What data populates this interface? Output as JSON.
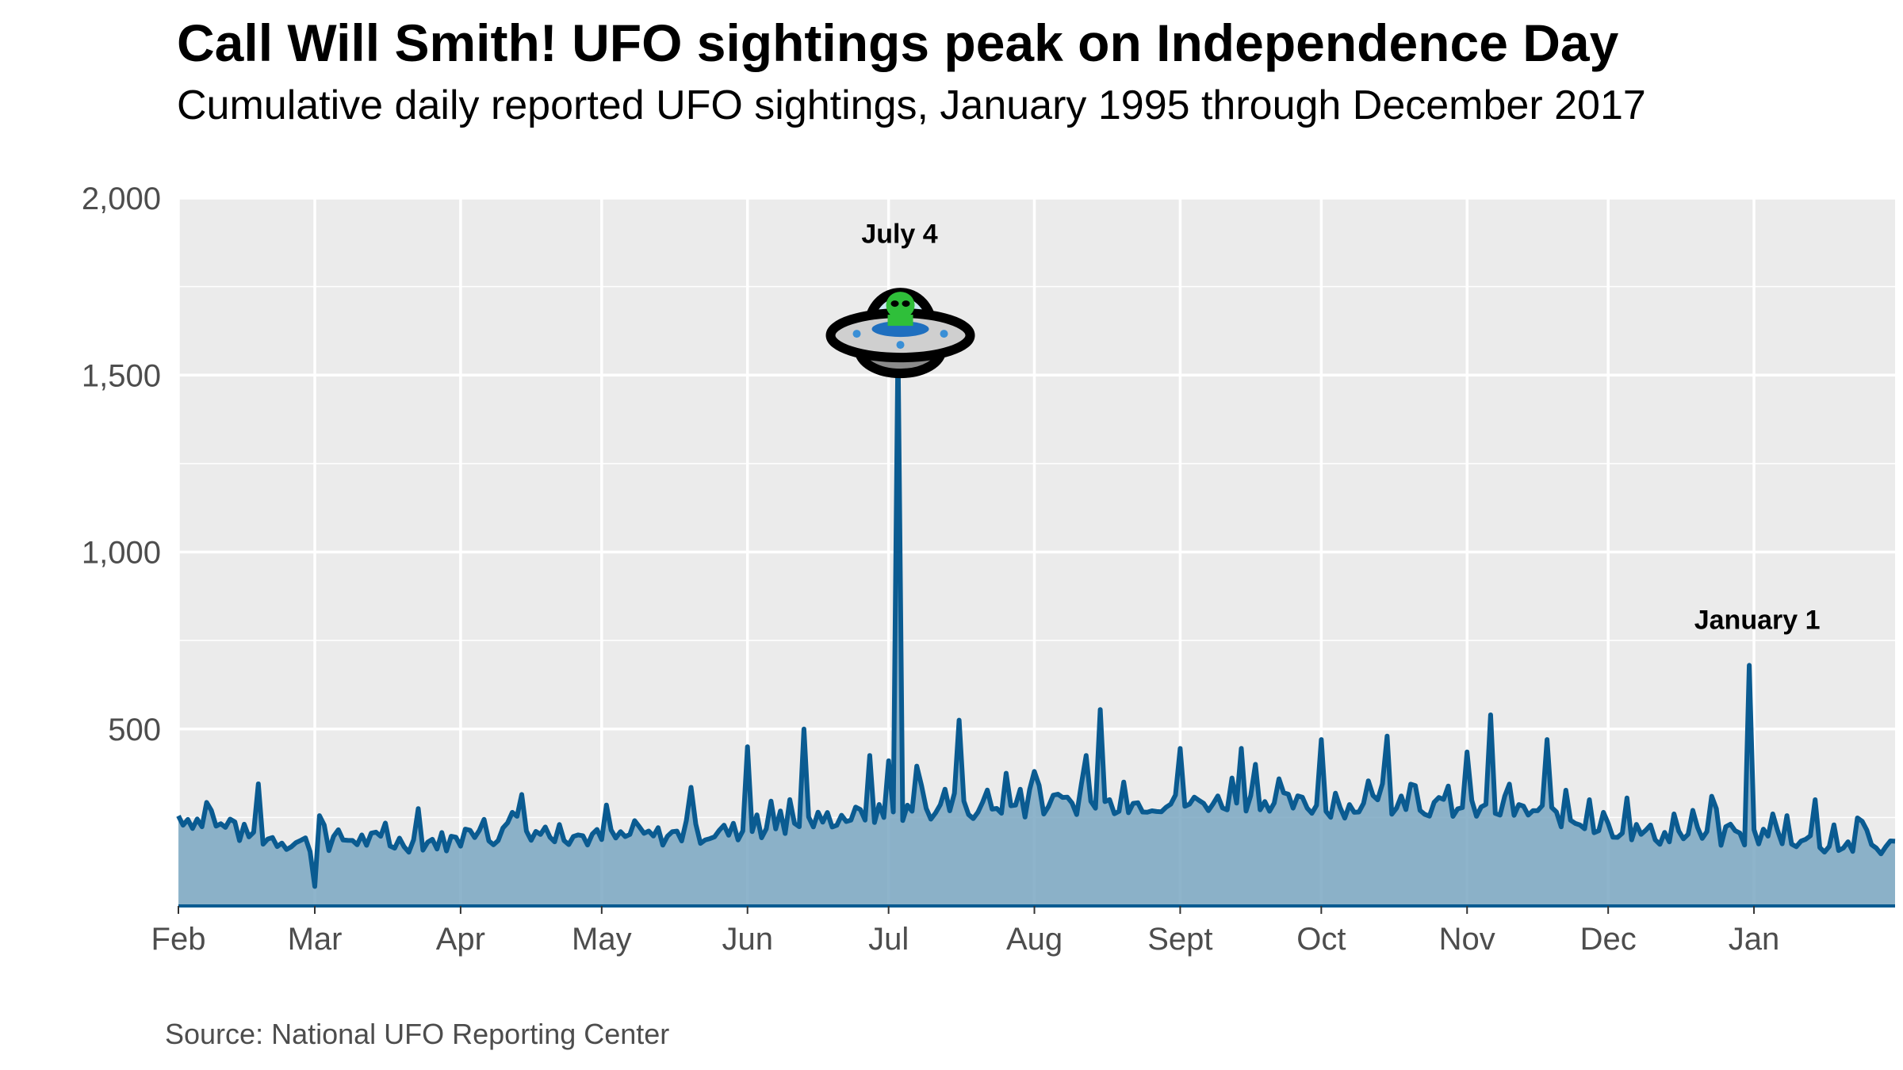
{
  "chart_data": {
    "type": "area",
    "title": "Call Will Smith! UFO sightings peak on Independence Day",
    "subtitle": "Cumulative daily reported UFO sightings, January 1995 through December 2017",
    "caption": "Source: National UFO Reporting Center",
    "xlabel": "",
    "ylabel": "",
    "ylim": [
      0,
      2000
    ],
    "y_ticks": [
      "2,000",
      "1,500",
      "1,000",
      "500"
    ],
    "y_tick_values": [
      2000,
      1500,
      1000,
      500
    ],
    "x_tick_labels": [
      "Feb",
      "Mar",
      "Apr",
      "May",
      "Jun",
      "Jul",
      "Aug",
      "Sept",
      "Oct",
      "Nov",
      "Dec",
      "Jan"
    ],
    "x_tick_days": [
      0,
      29,
      60,
      90,
      121,
      151,
      182,
      213,
      243,
      274,
      304,
      335
    ],
    "x_range_days": [
      0,
      365
    ],
    "grid": true,
    "line_color": "#0a5b91",
    "fill_color": "#7aa7c2",
    "panel_color": "#ebebeb",
    "annotations": [
      {
        "label": "July 4",
        "x_day": 153,
        "y": 1900,
        "icon": "ufo-icon"
      },
      {
        "label": "January 1",
        "x_day": 334,
        "y": 810
      }
    ],
    "series": [
      {
        "x_start": "Feb 1",
        "spikes": [
          [
            7,
            270
          ],
          [
            17,
            345
          ],
          [
            29,
            55
          ],
          [
            30,
            255
          ],
          [
            51,
            275
          ],
          [
            73,
            315
          ],
          [
            91,
            285
          ],
          [
            109,
            335
          ],
          [
            121,
            450
          ],
          [
            133,
            500
          ],
          [
            147,
            425
          ],
          [
            151,
            410
          ],
          [
            153,
            1590
          ],
          [
            157,
            395
          ],
          [
            158,
            340
          ],
          [
            163,
            330
          ],
          [
            166,
            525
          ],
          [
            176,
            375
          ],
          [
            182,
            380
          ],
          [
            193,
            425
          ],
          [
            196,
            555
          ],
          [
            201,
            350
          ],
          [
            213,
            445
          ],
          [
            226,
            445
          ],
          [
            229,
            400
          ],
          [
            243,
            470
          ],
          [
            257,
            480
          ],
          [
            263,
            340
          ],
          [
            274,
            435
          ],
          [
            279,
            540
          ],
          [
            282,
            310
          ],
          [
            291,
            470
          ],
          [
            300,
            300
          ],
          [
            308,
            305
          ],
          [
            318,
            260
          ],
          [
            322,
            270
          ],
          [
            326,
            310
          ],
          [
            334,
            680
          ],
          [
            348,
            300
          ]
        ],
        "baseline": [
          [
            0,
            255
          ],
          [
            15,
            200
          ],
          [
            28,
            175
          ],
          [
            35,
            190
          ],
          [
            45,
            180
          ],
          [
            60,
            185
          ],
          [
            75,
            215
          ],
          [
            90,
            190
          ],
          [
            105,
            200
          ],
          [
            118,
            210
          ],
          [
            128,
            225
          ],
          [
            140,
            250
          ],
          [
            150,
            260
          ],
          [
            160,
            270
          ],
          [
            172,
            275
          ],
          [
            185,
            285
          ],
          [
            200,
            290
          ],
          [
            215,
            290
          ],
          [
            230,
            300
          ],
          [
            245,
            275
          ],
          [
            260,
            290
          ],
          [
            275,
            270
          ],
          [
            290,
            265
          ],
          [
            300,
            230
          ],
          [
            315,
            200
          ],
          [
            330,
            195
          ],
          [
            340,
            200
          ],
          [
            350,
            175
          ],
          [
            365,
            165
          ]
        ]
      }
    ]
  }
}
